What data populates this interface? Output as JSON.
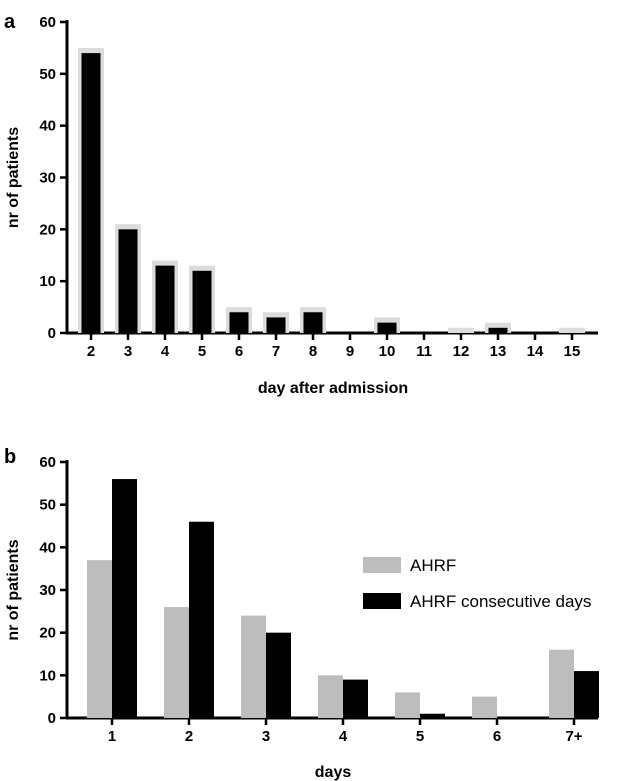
{
  "chart_data": [
    {
      "panel": "a",
      "type": "bar",
      "title": "",
      "xlabel": "day after admission",
      "ylabel": "nr of patients",
      "ylim": [
        0,
        60
      ],
      "yticks": [
        0,
        10,
        20,
        30,
        40,
        50,
        60
      ],
      "categories": [
        "2",
        "3",
        "4",
        "5",
        "6",
        "7",
        "8",
        "9",
        "10",
        "11",
        "12",
        "13",
        "14",
        "15"
      ],
      "series": [
        {
          "values": [
            55,
            21,
            14,
            13,
            5,
            4,
            5,
            0,
            3,
            0,
            1,
            2,
            0,
            1
          ],
          "color": "#dcdcdc"
        },
        {
          "values": [
            54,
            20,
            13,
            12,
            4,
            3,
            4,
            0,
            2,
            0,
            0,
            1,
            0,
            0
          ],
          "color": "#000000"
        }
      ],
      "overlay": true,
      "grid": false
    },
    {
      "panel": "b",
      "type": "bar",
      "title": "",
      "xlabel": "days",
      "ylabel": "nr of patients",
      "ylim": [
        0,
        60
      ],
      "yticks": [
        0,
        10,
        20,
        30,
        40,
        50,
        60
      ],
      "categories": [
        "1",
        "2",
        "3",
        "4",
        "5",
        "6",
        "7+"
      ],
      "series": [
        {
          "name": "AHRF",
          "values": [
            37,
            26,
            24,
            10,
            6,
            5,
            16
          ],
          "color": "#bdbdbd"
        },
        {
          "name": "AHRF consecutive days",
          "values": [
            56,
            46,
            20,
            9,
            1,
            0,
            11
          ],
          "color": "#000000"
        }
      ],
      "legend": "top-right",
      "grid": false
    }
  ]
}
